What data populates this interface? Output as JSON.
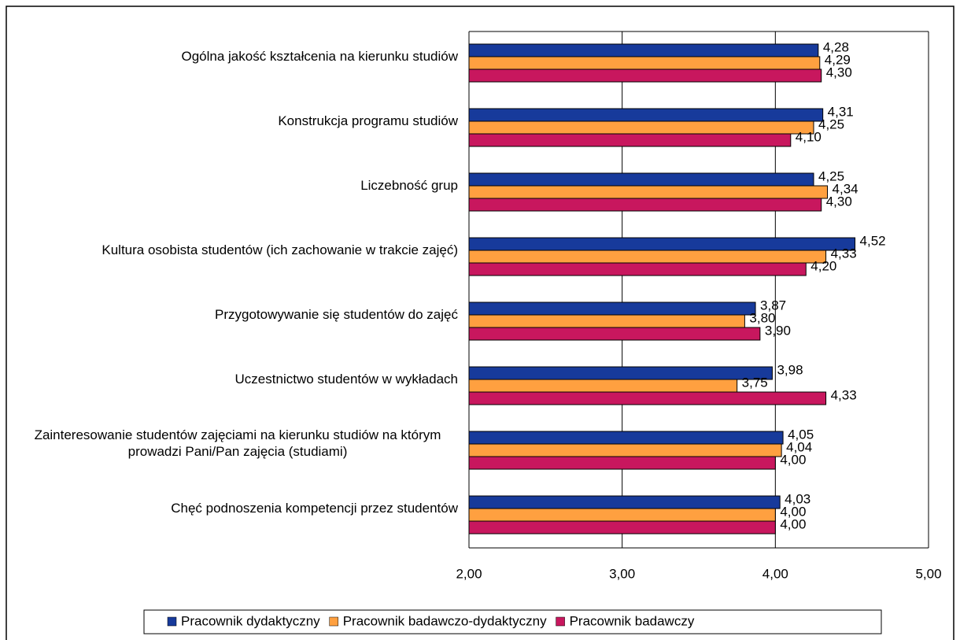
{
  "chart_data": {
    "type": "bar",
    "categories": [
      "Ogólna jakość kształcenia na kierunku studiów",
      "Konstrukcja programu studiów",
      "Liczebność grup",
      "Kultura osobista studentów (ich zachowanie w trakcie zajęć)",
      "Przygotowywanie się studentów do zajęć",
      "Uczestnictwo studentów w wykładach",
      "Zainteresowanie studentów zajęciami na kierunku studiów na którym prowadzi Pani/Pan zajęcia (studiami)",
      "Chęć podnoszenia kompetencji przez studentów"
    ],
    "series": [
      {
        "name": "Pracownik dydaktyczny",
        "color": "#173a9b",
        "values": [
          4.28,
          4.31,
          4.25,
          4.52,
          3.87,
          3.98,
          4.05,
          4.03
        ],
        "value_labels": [
          "4,28",
          "4,31",
          "4,25",
          "4,52",
          "3,87",
          "3,98",
          "4,05",
          "4,03"
        ]
      },
      {
        "name": "Pracownik badawczo-dydaktyczny",
        "color": "#ffa040",
        "values": [
          4.29,
          4.25,
          4.34,
          4.33,
          3.8,
          3.75,
          4.04,
          4.0
        ],
        "value_labels": [
          "4,29",
          "4,25",
          "4,34",
          "4,33",
          "3,80",
          "3,75",
          "4,04",
          "4,00"
        ]
      },
      {
        "name": "Pracownik badawczy",
        "color": "#c8175e",
        "values": [
          4.3,
          4.1,
          4.3,
          4.2,
          3.9,
          4.33,
          4.0,
          4.0
        ],
        "value_labels": [
          "4,30",
          "4,10",
          "4,30",
          "4,20",
          "3,90",
          "4,33",
          "4,00",
          "4,00"
        ]
      }
    ],
    "xlim": [
      2,
      5
    ],
    "xticks": [
      {
        "value": 2,
        "label": "2,00"
      },
      {
        "value": 3,
        "label": "3,00"
      },
      {
        "value": 4,
        "label": "4,00"
      },
      {
        "value": 5,
        "label": "5,00"
      }
    ],
    "grid": true,
    "legend": "bottom"
  }
}
